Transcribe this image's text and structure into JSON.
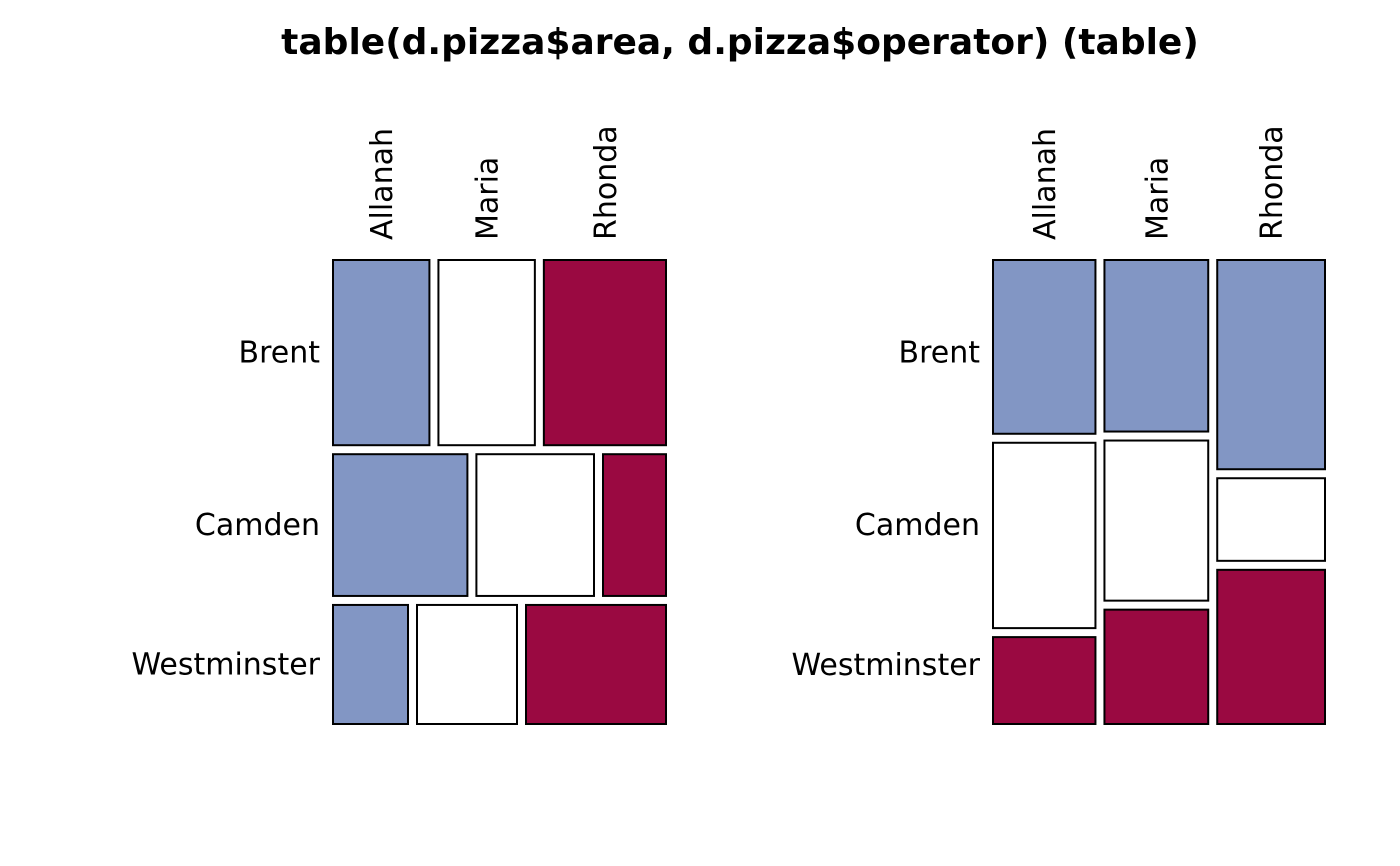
{
  "chart_data": {
    "type": "mosaic",
    "title": "table(d.pizza$area, d.pizza$operator) (table)",
    "rows": [
      "Brent",
      "Camden",
      "Westminster"
    ],
    "cols": [
      "Allanah",
      "Maria",
      "Rhonda"
    ],
    "colors": {
      "Allanah": "#8296C4",
      "Maria": "#FFFFFF",
      "Rhonda": "#9A0941",
      "Brent": "#8296C4",
      "Camden": "#FFFFFF",
      "Westminster": "#9A0941"
    },
    "panels": [
      {
        "split": "rows",
        "counts": [
          [
            150,
            150,
            190
          ],
          [
            160,
            140,
            75
          ],
          [
            75,
            100,
            140
          ]
        ]
      },
      {
        "split": "cols",
        "counts": [
          [
            150,
            150,
            190
          ],
          [
            160,
            140,
            75
          ],
          [
            75,
            100,
            140
          ]
        ]
      }
    ]
  }
}
